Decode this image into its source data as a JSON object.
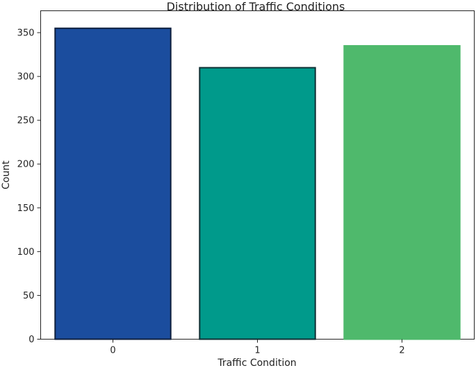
{
  "chart_data": {
    "type": "bar",
    "title": "Distribution of Traffic Conditions",
    "xlabel": "Traffic Condition",
    "ylabel": "Count",
    "categories": [
      "0",
      "1",
      "2"
    ],
    "values": [
      355,
      310,
      335
    ],
    "colors": [
      "#1b4d9e",
      "#009a8b",
      "#4fb96c"
    ],
    "edge_colors": [
      "#0e1f3d",
      "#0e2f33",
      "#4fb96c"
    ],
    "ylim": [
      0,
      375
    ],
    "yticks": [
      0,
      50,
      100,
      150,
      200,
      250,
      300,
      350
    ],
    "grid": false
  }
}
